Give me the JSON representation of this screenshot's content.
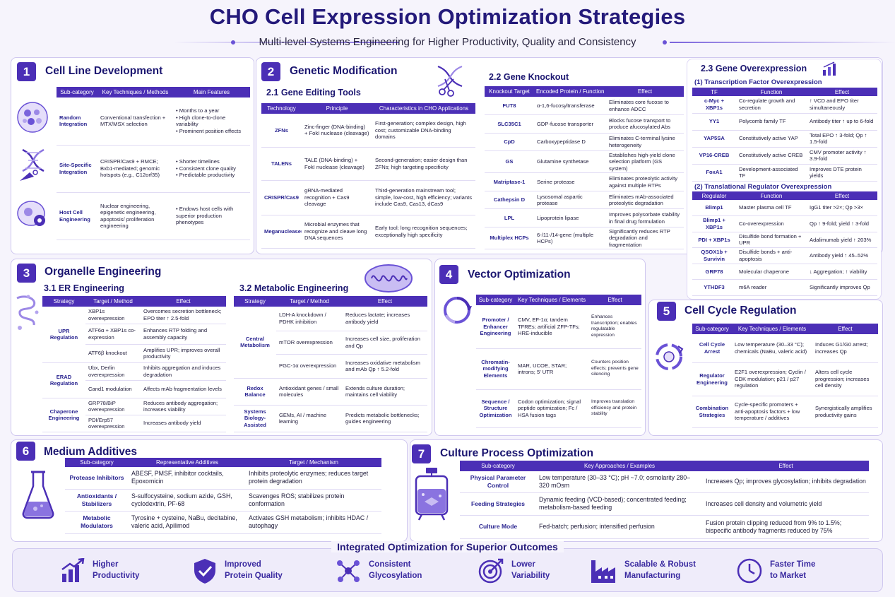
{
  "header": {
    "title": "CHO Cell Expression Optimization Strategies",
    "subtitle": "Multi-level Systems Engineering for Higher Productivity, Quality and Consistency"
  },
  "colors": {
    "accent": "#4b2fb6",
    "title": "#241a7a",
    "panel_border": "#cfc7ef",
    "background": "#f6f4fc"
  },
  "s1": {
    "num": "1",
    "title": "Cell Line Development",
    "headers": [
      "Sub-category",
      "Key Techniques / Methods",
      "Main Features"
    ],
    "rows": [
      {
        "cat": "Random Integration",
        "tech": "Conventional transfection + MTX/MSX selection",
        "features": [
          "Months to a year",
          "High clone-to-clone variability",
          "Prominent position effects"
        ],
        "icon": "cells-icon"
      },
      {
        "cat": "Site-Specific Integration",
        "tech": "CRISPR/Cas9 + RMCE; Bxb1-mediated; genomic hotspots (e.g., C12orf35)",
        "features": [
          "Shorter timelines",
          "Consistent clone quality",
          "Predictable productivity"
        ],
        "icon": "dna-icon"
      },
      {
        "cat": "Host Cell Engineering",
        "tech": "Nuclear engineering, epigenetic engineering, apoptosis/ proliferation engineering",
        "features": [
          "Endows host cells with superior production phenotypes"
        ],
        "icon": "cell-gear-icon"
      }
    ]
  },
  "s2": {
    "num": "2",
    "title": "Genetic Modification",
    "s21": {
      "title": "2.1 Gene Editing Tools",
      "headers": [
        "Technology",
        "Principle",
        "Characteristics in CHO Applications"
      ],
      "rows": [
        {
          "tech": "ZFNs",
          "principle": "Zinc-finger (DNA-binding) + FokI nuclease (cleavage)",
          "chars": "First-generation; complex design, high cost; customizable DNA-binding domains"
        },
        {
          "tech": "TALENs",
          "principle": "TALE (DNA-binding) + FokI nuclease (cleavage)",
          "chars": "Second-generation; easier design than ZFNs; high targeting specificity"
        },
        {
          "tech": "CRISPR/Cas9",
          "principle": "gRNA-mediated recognition + Cas9 cleavage",
          "chars": "Third-generation mainstream tool; simple, low-cost, high efficiency; variants include Cas9, Cas13, dCas9"
        },
        {
          "tech": "Meganucleases",
          "principle": "Microbial enzymes that recognize and cleave long DNA sequences",
          "chars": "Early tool; long recognition sequences; exceptionally high specificity"
        }
      ]
    },
    "s22": {
      "title": "2.2 Gene Knockout",
      "headers": [
        "Knockout Target",
        "Encoded Protein / Function",
        "Effect"
      ],
      "rows": [
        {
          "target": "FUT8",
          "protein": "α-1,6-fucosyltransferase",
          "effect": "Eliminates core fucose to enhance ADCC"
        },
        {
          "target": "SLC35C1",
          "protein": "GDP-fucose transporter",
          "effect": "Blocks fucose transport to produce afucosylated Abs"
        },
        {
          "target": "CpD",
          "protein": "Carboxypeptidase D",
          "effect": "Eliminates C-terminal lysine heterogeneity"
        },
        {
          "target": "GS",
          "protein": "Glutamine synthetase",
          "effect": "Establishes high-yield clone selection platform (GS system)"
        },
        {
          "target": "Matriptase-1",
          "protein": "Serine protease",
          "effect": "Eliminates proteolytic activity against multiple RTPs"
        },
        {
          "target": "Cathepsin D",
          "protein": "Lysosomal aspartic protease",
          "effect": "Eliminates mAb-associated proteolytic degradation"
        },
        {
          "target": "LPL",
          "protein": "Lipoprotein lipase",
          "effect": "Improves polysorbate stability in final drug formulation"
        },
        {
          "target": "Multiplex HCPs",
          "protein": "6-/11-/14-gene (multiple HCPs)",
          "effect": "Significantly reduces RTP degradation and fragmentation"
        }
      ]
    },
    "s23": {
      "title": "2.3 Gene Overexpression",
      "tf_title": "(1) Transcription Factor Overexpression",
      "tf_headers": [
        "TF",
        "Function",
        "Effect"
      ],
      "tf_rows": [
        {
          "name": "c-Myc + XBP1s",
          "func": "Co-regulate growth and secretion",
          "effect": "↑ VCD and EPO titer simultaneously"
        },
        {
          "name": "YY1",
          "func": "Polycomb family TF",
          "effect": "Antibody titer ↑ up to 6-fold"
        },
        {
          "name": "YAP5SA",
          "func": "Constitutively active YAP",
          "effect": "Total EPO ↑ 3-fold; Qp ↑ 1.5-fold"
        },
        {
          "name": "VP16-CREB",
          "func": "Constitutively active CREB",
          "effect": "CMV promoter activity ↑ 3.9-fold"
        },
        {
          "name": "FoxA1",
          "func": "Development-associated TF",
          "effect": "Improves DTE protein yields"
        }
      ],
      "tr_title": "(2) Translational Regulator Overexpression",
      "tr_headers": [
        "Regulator",
        "Function",
        "Effect"
      ],
      "tr_rows": [
        {
          "name": "Blimp1",
          "func": "Master plasma cell TF",
          "effect": "IgG1 titer >2×; Qp >3×"
        },
        {
          "name": "Blimp1 + XBP1s",
          "func": "Co-overexpression",
          "effect": "Qp ↑ 9-fold; yield ↑ 3-fold"
        },
        {
          "name": "PDI + XBP1s",
          "func": "Disulfide bond formation + UPR",
          "effect": "Adalimumab yield ↑ 203%"
        },
        {
          "name": "QSOX1b + Survivin",
          "func": "Disulfide bonds + anti-apoptosis",
          "effect": "Antibody yield ↑ 45–52%"
        },
        {
          "name": "GRP78",
          "func": "Molecular chaperone",
          "effect": "↓ Aggregation; ↑ viability"
        },
        {
          "name": "YTHDF3",
          "func": "m6A reader",
          "effect": "Significantly improves Qp"
        }
      ]
    }
  },
  "s3": {
    "num": "3",
    "title": "Organelle Engineering",
    "s31": {
      "title": "3.1 ER Engineering",
      "headers": [
        "Strategy",
        "Target / Method",
        "Effect"
      ],
      "groups": [
        {
          "strategy": "UPR Regulation",
          "rows": [
            {
              "method": "XBP1s overexpression",
              "effect": "Overcomes secretion bottleneck; EPO titer ↑ 2.5-fold"
            },
            {
              "method": "ATF6α + XBP1s co-expression",
              "effect": "Enhances RTP folding and assembly capacity"
            },
            {
              "method": "ATF6β knockout",
              "effect": "Amplifies UPR; improves overall productivity"
            }
          ]
        },
        {
          "strategy": "ERAD Regulation",
          "rows": [
            {
              "method": "Ubx, Derlin overexpression",
              "effect": "Inhibits aggregation and induces degradation"
            },
            {
              "method": "Cand1 modulation",
              "effect": "Affects mAb fragmentation levels"
            }
          ]
        },
        {
          "strategy": "Chaperone Engineering",
          "rows": [
            {
              "method": "GRP78/BiP overexpression",
              "effect": "Reduces antibody aggregation; increases viability"
            },
            {
              "method": "PDI/Erp57 overexpression",
              "effect": "Increases antibody yield"
            }
          ]
        }
      ]
    },
    "s32": {
      "title": "3.2 Metabolic Engineering",
      "headers": [
        "Strategy",
        "Target / Method",
        "Effect"
      ],
      "groups": [
        {
          "strategy": "Central Metabolism",
          "rows": [
            {
              "method": "LDH-A knockdown / PDHK inhibition",
              "effect": "Reduces lactate; increases antibody yield"
            },
            {
              "method": "mTOR overexpression",
              "effect": "Increases cell size, proliferation and Qp"
            },
            {
              "method": "PGC-1α overexpression",
              "effect": "Increases oxidative metabolism and mAb Qp ↑ 5.2-fold"
            }
          ]
        },
        {
          "strategy": "Redox Balance",
          "rows": [
            {
              "method": "Antioxidant genes / small molecules",
              "effect": "Extends culture duration; maintains cell viability"
            }
          ]
        },
        {
          "strategy": "Systems Biology-Assisted",
          "rows": [
            {
              "method": "GEMs, AI / machine learning",
              "effect": "Predicts metabolic bottlenecks; guides engineering"
            }
          ]
        }
      ]
    }
  },
  "s4": {
    "num": "4",
    "title": "Vector Optimization",
    "headers": [
      "Sub-category",
      "Key Techniques / Elements",
      "Effect"
    ],
    "rows": [
      {
        "cat": "Promoter / Enhancer Engineering",
        "tech": "CMV, EF-1α; tandem TFREs; artificial ZFP-TFs; HRE-inducible",
        "effect": "Enhances transcription; enables regulatable expression"
      },
      {
        "cat": "Chromatin-modifying Elements",
        "tech": "MAR, UCOE, STAR; introns; 5' UTR",
        "effect": "Counters position effects; prevents gene silencing"
      },
      {
        "cat": "Sequence / Structure Optimization",
        "tech": "Codon optimization; signal peptide optimization; Fc / HSA fusion tags",
        "effect": "Improves translation efficiency and protein stability"
      }
    ]
  },
  "s5": {
    "num": "5",
    "title": "Cell Cycle Regulation",
    "headers": [
      "Sub-category",
      "Key Techniques / Elements",
      "Effect"
    ],
    "rows": [
      {
        "cat": "Cell Cycle Arrest",
        "tech": "Low temperature (30–33 °C); chemicals (NaBu, valeric acid)",
        "effect": "Induces G1/G0 arrest; increases Qp"
      },
      {
        "cat": "Regulator Engineering",
        "tech": "E2F1 overexpression; Cyclin / CDK modulation; p21 / p27 regulation",
        "effect": "Alters cell cycle progression; increases cell density"
      },
      {
        "cat": "Combination Strategies",
        "tech": "Cycle-specific promoters + anti-apoptosis factors + low temperature / additives",
        "effect": "Synergistically amplifies productivity gains"
      }
    ]
  },
  "s6": {
    "num": "6",
    "title": "Medium Additives",
    "headers": [
      "Sub-category",
      "Representative Additives",
      "Target / Mechanism"
    ],
    "rows": [
      {
        "cat": "Protease Inhibitors",
        "additives": "ABESF, PMSF, inhibitor cocktails, Epoxomicin",
        "mech": "Inhibits proteolytic enzymes; reduces target protein degradation"
      },
      {
        "cat": "Antioxidants / Stabilizers",
        "additives": "S-sulfocysteine, sodium azide, GSH, cyclodextrin, PF-68",
        "mech": "Scavenges ROS; stabilizes protein conformation"
      },
      {
        "cat": "Metabolic Modulators",
        "additives": "Tyrosine + cysteine, NaBu, decitabine, valeric acid, Apilimod",
        "mech": "Activates GSH metabolism; inhibits HDAC / autophagy"
      }
    ]
  },
  "s7": {
    "num": "7",
    "title": "Culture Process Optimization",
    "headers": [
      "Sub-category",
      "Key Approaches / Examples",
      "Effect"
    ],
    "rows": [
      {
        "cat": "Physical Parameter Control",
        "approach": "Low temperature (30–33 °C); pH ~7.0; osmolarity 280–320 mOsm",
        "effect": "Increases Qp; improves glycosylation; inhibits degradation"
      },
      {
        "cat": "Feeding Strategies",
        "approach": "Dynamic feeding (VCD-based); concentrated feeding; metabolism-based feeding",
        "effect": "Increases cell density and volumetric yield"
      },
      {
        "cat": "Culture Mode",
        "approach": "Fed-batch; perfusion; intensified perfusion",
        "effect": "Fusion protein clipping reduced from 9% to 1.5%; bispecific antibody fragments reduced by 75%"
      }
    ]
  },
  "outcomes": {
    "title": "Integrated Optimization for Superior Outcomes",
    "items": [
      {
        "line1": "Higher",
        "line2": "Productivity",
        "icon": "bar-chart-icon"
      },
      {
        "line1": "Improved",
        "line2": "Protein Quality",
        "icon": "shield-check-icon"
      },
      {
        "line1": "Consistent",
        "line2": "Glycosylation",
        "icon": "molecule-icon"
      },
      {
        "line1": "Lower",
        "line2": "Variability",
        "icon": "target-icon"
      },
      {
        "line1": "Scalable & Robust",
        "line2": "Manufacturing",
        "icon": "factory-icon"
      },
      {
        "line1": "Faster Time",
        "line2": "to Market",
        "icon": "clock-icon"
      }
    ]
  }
}
